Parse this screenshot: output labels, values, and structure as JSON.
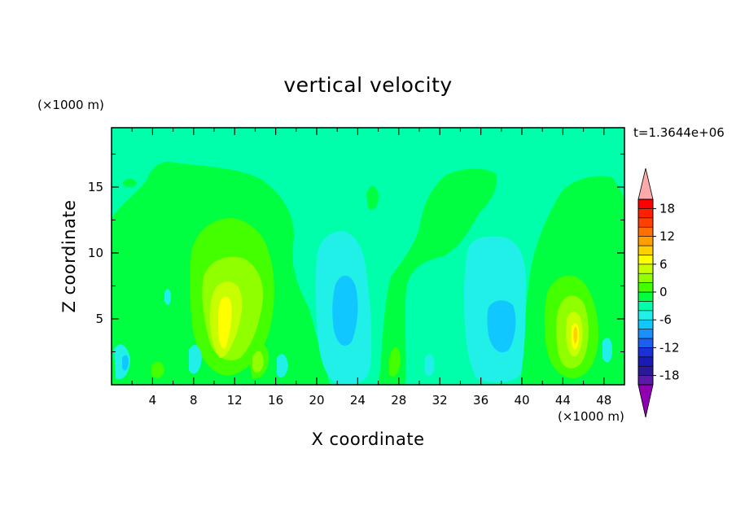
{
  "chart_data": {
    "type": "heatmap",
    "title": "vertical velocity",
    "xlabel": "X coordinate",
    "ylabel": "Z coordinate",
    "x_unit": "(×1000 m)",
    "y_unit": "(×1000 m)",
    "time_label": "t=1.3644e+06",
    "xlim": [
      0,
      50
    ],
    "ylim": [
      0,
      19.5
    ],
    "x_ticks": [
      4,
      8,
      12,
      16,
      20,
      24,
      28,
      32,
      36,
      40,
      44,
      48
    ],
    "y_ticks": [
      5,
      10,
      15
    ],
    "colorbar": {
      "levels": [
        -20,
        -18,
        -16,
        -14,
        -12,
        -10,
        -8,
        -6,
        -4,
        -2,
        0,
        2,
        4,
        6,
        8,
        10,
        12,
        14,
        16,
        18,
        20
      ],
      "tick_labels": [
        "18",
        "12",
        "6",
        "0",
        "-6",
        "-12",
        "-18"
      ],
      "tick_values": [
        18,
        12,
        6,
        0,
        -6,
        -12,
        -18
      ],
      "colors": [
        "#5a1aa8",
        "#2a1a9a",
        "#1a1ab4",
        "#1a30d8",
        "#1a60f0",
        "#1a90ff",
        "#10c8ff",
        "#20f0e8",
        "#00ffaa",
        "#00ff40",
        "#44ff00",
        "#90ff00",
        "#c8ff00",
        "#ffff00",
        "#ffd000",
        "#ffa000",
        "#ff7000",
        "#ff4000",
        "#ff2000",
        "#ff0000"
      ],
      "over_color": "#ffaaaa",
      "under_color": "#9000b0"
    },
    "features": [
      {
        "kind": "updraft",
        "x": 11.5,
        "z": 6.0,
        "peak_w": 8
      },
      {
        "kind": "updraft",
        "x": 45.0,
        "z": 4.0,
        "peak_w": 9
      },
      {
        "kind": "downdraft",
        "x": 23.0,
        "z": 6.5,
        "peak_w": -6
      },
      {
        "kind": "downdraft",
        "x": 37.5,
        "z": 5.0,
        "peak_w": -6
      }
    ],
    "background_level": 0
  }
}
